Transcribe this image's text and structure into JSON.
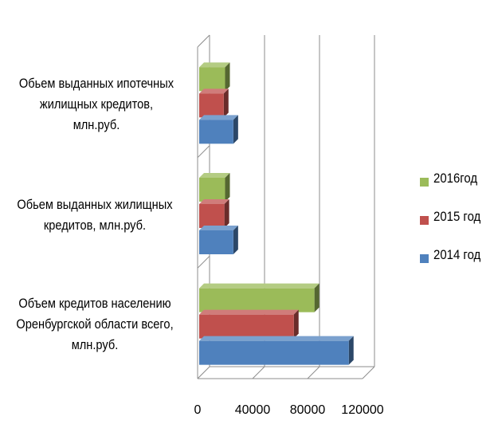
{
  "chart_data": {
    "type": "bar",
    "orientation": "horizontal",
    "style": "3d-clustered",
    "categories": [
      "Обьем выданных ипотечных жилищных кредитов, млн.руб.",
      "Обьем выданных  жилищных кредитов, млн.руб.",
      "Объем кредитов  населению Оренбургской области всего, млн.руб."
    ],
    "series": [
      {
        "name": "2014 год",
        "color": "#4F81BD",
        "values": [
          26000,
          26000,
          110000
        ]
      },
      {
        "name": "2015 год",
        "color": "#C0504D",
        "values": [
          19000,
          19500,
          70000
        ]
      },
      {
        "name": "2016год",
        "color": "#9BBB59",
        "values": [
          20000,
          20000,
          85000
        ]
      }
    ],
    "xlim": [
      0,
      120000
    ],
    "xticks": [
      "0",
      "40000",
      "80000",
      "120000"
    ],
    "grid": true,
    "legend_position": "right"
  }
}
